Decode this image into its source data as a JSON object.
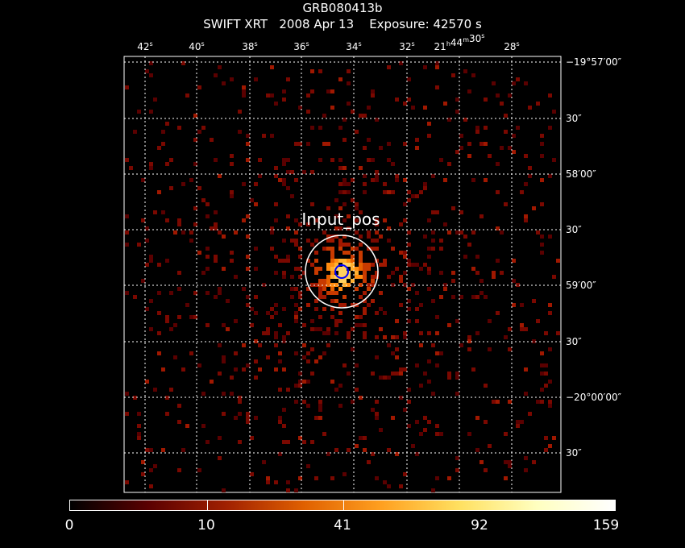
{
  "header": {
    "target": "GRB080413b",
    "line2": "SWIFT XRT   2008 Apr 13    Exposure: 42570 s"
  },
  "image": {
    "ra_labels": [
      {
        "text": "42",
        "sup": "s"
      },
      {
        "text": "40",
        "sup": "s"
      },
      {
        "text": "38",
        "sup": "s"
      },
      {
        "text": "36",
        "sup": "s"
      },
      {
        "text": "34",
        "sup": "s"
      },
      {
        "text": "32",
        "sup": "s"
      },
      {
        "text": "21",
        "sup": "h",
        "text2": "44",
        "sup2": "m",
        "text3": "30",
        "sup3": "s"
      },
      {
        "text": "28",
        "sup": "s"
      }
    ],
    "dec_labels": [
      "−19°57′00″",
      "30″",
      "58′00″",
      "30″",
      "59′00″",
      "30″",
      "−20°00′00″",
      "30″"
    ],
    "source_label": "Input_pos",
    "colors": {
      "background": "#000000",
      "grid": "#ffffff",
      "outer_circle": "#ffffff",
      "inner_circle": "#0000ff"
    }
  },
  "colorbar": {
    "labels": [
      "0",
      "10",
      "41",
      "92",
      "159"
    ],
    "stops": [
      "#000000",
      "#5a0000",
      "#a02000",
      "#e06000",
      "#ffa020",
      "#ffe060",
      "#ffffc0",
      "#ffffff"
    ]
  }
}
